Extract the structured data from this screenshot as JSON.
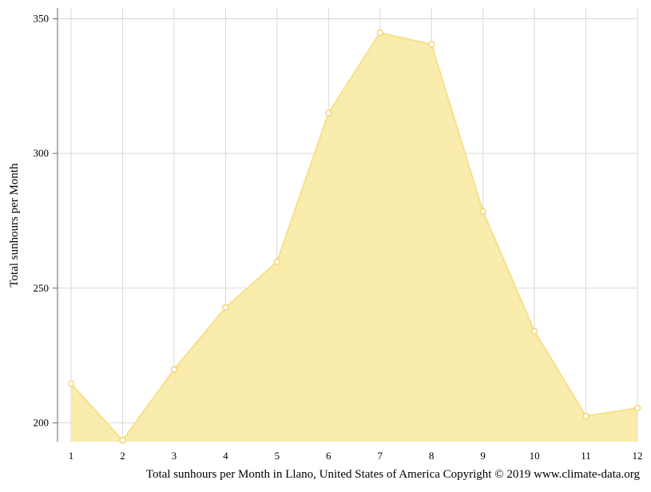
{
  "chart_data": {
    "type": "area",
    "title": "",
    "ylabel": "Total sunhours per Month",
    "xlabel": "",
    "caption": "Total sunhours per Month in Llano, United States of America Copyright © 2019 www.climate-data.org",
    "x": [
      1,
      2,
      3,
      4,
      5,
      6,
      7,
      8,
      9,
      10,
      11,
      12
    ],
    "x_tick_labels": [
      "1",
      "2",
      "3",
      "4",
      "5",
      "6",
      "7",
      "8",
      "9",
      "10",
      "11",
      "12"
    ],
    "y_ticks": [
      200,
      250,
      300,
      350
    ],
    "y_tick_labels": [
      "200",
      "250",
      "300",
      "350"
    ],
    "ylim": [
      193,
      354
    ],
    "grid": true,
    "legend": "none",
    "series": [
      {
        "values": [
          214.5,
          193.5,
          219.8,
          242.8,
          259.8,
          315.0,
          344.8,
          340.5,
          278.5,
          234.0,
          202.5,
          205.5
        ]
      }
    ],
    "colors": {
      "fill": "#f9eba8",
      "line": "#f7e08a",
      "marker_fill": "#ffffff",
      "marker_stroke": "#f2d35f",
      "grid": "#d9d9d9",
      "axis": "#666666"
    }
  }
}
